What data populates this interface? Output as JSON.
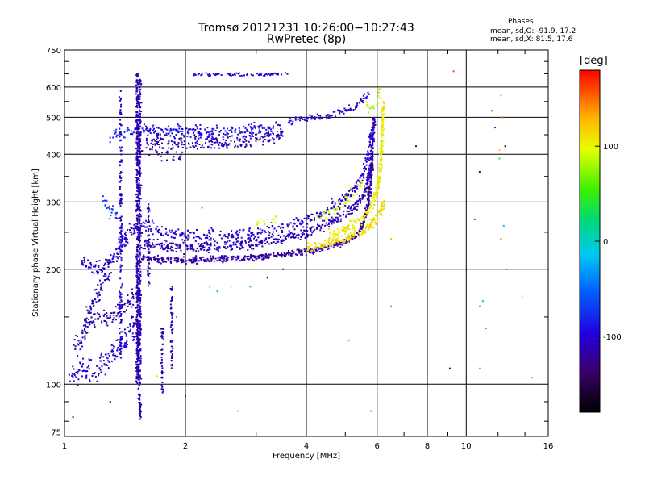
{
  "chart_data": {
    "type": "scatter",
    "title": "Tromsø 20121231 10:26:00−10:27:43",
    "subtitle": "RwPretec (8p)",
    "xlabel": "Frequency [MHz]",
    "ylabel": "Stationary phase Virtual Height [km]",
    "xscale": "log",
    "yscale": "log",
    "xlim": [
      1,
      16
    ],
    "ylim": [
      73,
      750
    ],
    "xticks": [
      1,
      2,
      4,
      6,
      8,
      10,
      16
    ],
    "xtick_labels": [
      "1",
      "2",
      "4",
      "6",
      "8",
      "10",
      "16"
    ],
    "yticks": [
      75,
      100,
      200,
      300,
      400,
      500,
      600,
      750
    ],
    "ytick_labels": [
      "75",
      "100",
      "200",
      "300",
      "400",
      "500",
      "600",
      "750"
    ],
    "grid": true,
    "colorbar": {
      "label": "[deg]",
      "range": [
        -180,
        180
      ],
      "ticks": [
        100,
        0,
        -100
      ],
      "tick_labels": [
        "100",
        "0",
        "-100"
      ]
    },
    "phases_stats": {
      "title": "Phases",
      "o": "mean, sd,O: -91.9, 17.2",
      "x": "mean, sd,X:  81.5, 17.6"
    },
    "series": [
      {
        "kind": "band",
        "points": [
          [
            1.03,
            105
          ],
          [
            1.06,
            106
          ],
          [
            1.1,
            108
          ],
          [
            1.15,
            110
          ],
          [
            1.2,
            112
          ],
          [
            1.25,
            115
          ],
          [
            1.3,
            118
          ],
          [
            1.35,
            122
          ],
          [
            1.4,
            128
          ],
          [
            1.45,
            135
          ],
          [
            1.5,
            145
          ]
        ],
        "thick": 0.05,
        "phase": -100,
        "density": 1.4
      },
      {
        "kind": "band",
        "points": [
          [
            1.1,
            210
          ],
          [
            1.15,
            205
          ],
          [
            1.2,
            202
          ],
          [
            1.25,
            204
          ],
          [
            1.3,
            210
          ],
          [
            1.35,
            220
          ],
          [
            1.4,
            235
          ],
          [
            1.45,
            250
          ],
          [
            1.5,
            260
          ]
        ],
        "thick": 0.03,
        "phase": -105,
        "density": 1.4
      },
      {
        "kind": "band",
        "points": [
          [
            1.15,
            145
          ],
          [
            1.2,
            146
          ],
          [
            1.25,
            148
          ],
          [
            1.3,
            150
          ],
          [
            1.35,
            155
          ],
          [
            1.4,
            160
          ],
          [
            1.45,
            165
          ],
          [
            1.5,
            170
          ]
        ],
        "thick": 0.035,
        "phase": -115,
        "density": 1.2
      },
      {
        "kind": "band",
        "points": [
          [
            1.05,
            125
          ],
          [
            1.1,
            130
          ],
          [
            1.15,
            150
          ],
          [
            1.2,
            170
          ],
          [
            1.25,
            185
          ],
          [
            1.3,
            195
          ]
        ],
        "thick": 0.05,
        "phase": -110,
        "density": 1.0
      },
      {
        "kind": "band",
        "points": [
          [
            1.25,
            300
          ],
          [
            1.28,
            290
          ],
          [
            1.32,
            280
          ],
          [
            1.36,
            270
          ]
        ],
        "thick": 0.03,
        "phase": -70,
        "density": 0.8
      },
      {
        "kind": "band",
        "points": [
          [
            1.3,
            440
          ],
          [
            1.35,
            450
          ],
          [
            1.4,
            455
          ],
          [
            1.45,
            460
          ],
          [
            1.52,
            460
          ]
        ],
        "thick": 0.02,
        "phase": -80,
        "density": 0.8
      },
      {
        "kind": "vline",
        "x": 1.52,
        "y0": 100,
        "y1": 650,
        "phase": -115,
        "density": 1.2
      },
      {
        "kind": "vline",
        "x": 1.54,
        "y0": 80,
        "y1": 640,
        "phase": -110,
        "density": 0.9
      },
      {
        "kind": "vline",
        "x": 1.38,
        "y0": 120,
        "y1": 590,
        "phase": -105,
        "density": 0.5
      },
      {
        "kind": "vline",
        "x": 1.62,
        "y0": 180,
        "y1": 300,
        "phase": -115,
        "density": 0.6
      },
      {
        "kind": "vline",
        "x": 1.75,
        "y0": 95,
        "y1": 140,
        "phase": -115,
        "density": 0.5
      },
      {
        "kind": "vline",
        "x": 1.85,
        "y0": 110,
        "y1": 180,
        "phase": -110,
        "density": 0.5
      },
      {
        "kind": "band",
        "points": [
          [
            1.55,
            215
          ],
          [
            1.7,
            212
          ],
          [
            2.0,
            211
          ],
          [
            2.5,
            213
          ],
          [
            3.0,
            215
          ],
          [
            3.5,
            218
          ],
          [
            4.0,
            222
          ],
          [
            4.5,
            228
          ],
          [
            5.0,
            236
          ],
          [
            5.3,
            245
          ],
          [
            5.5,
            258
          ],
          [
            5.6,
            275
          ],
          [
            5.7,
            300
          ],
          [
            5.78,
            340
          ],
          [
            5.83,
            380
          ]
        ],
        "thick": 0.012,
        "phase": -118,
        "density": 1.5
      },
      {
        "kind": "band",
        "points": [
          [
            1.55,
            235
          ],
          [
            1.8,
            230
          ],
          [
            2.0,
            228
          ],
          [
            2.5,
            230
          ],
          [
            3.0,
            233
          ],
          [
            3.5,
            240
          ],
          [
            4.0,
            250
          ],
          [
            4.5,
            262
          ],
          [
            5.0,
            278
          ],
          [
            5.3,
            292
          ],
          [
            5.5,
            308
          ],
          [
            5.65,
            330
          ],
          [
            5.75,
            360
          ],
          [
            5.82,
            400
          ],
          [
            5.87,
            450
          ],
          [
            5.9,
            500
          ]
        ],
        "thick": 0.02,
        "phase": -112,
        "density": 1.4
      },
      {
        "kind": "band",
        "points": [
          [
            1.55,
            260
          ],
          [
            1.8,
            250
          ],
          [
            2.0,
            245
          ],
          [
            2.5,
            243
          ],
          [
            3.0,
            248
          ],
          [
            3.5,
            258
          ],
          [
            4.0,
            270
          ],
          [
            4.5,
            285
          ],
          [
            5.0,
            305
          ],
          [
            5.3,
            325
          ],
          [
            5.5,
            350
          ],
          [
            5.65,
            385
          ],
          [
            5.75,
            420
          ],
          [
            5.83,
            470
          ]
        ],
        "thick": 0.025,
        "phase": -100,
        "density": 1.0
      },
      {
        "kind": "band",
        "points": [
          [
            3.6,
            488
          ],
          [
            4.0,
            495
          ],
          [
            4.5,
            505
          ],
          [
            5.0,
            520
          ],
          [
            5.3,
            535
          ],
          [
            5.5,
            555
          ],
          [
            5.7,
            580
          ]
        ],
        "thick": 0.015,
        "phase": -105,
        "density": 0.9
      },
      {
        "kind": "band",
        "points": [
          [
            1.55,
            462
          ],
          [
            2.0,
            458
          ],
          [
            2.5,
            455
          ],
          [
            2.8,
            458
          ],
          [
            3.0,
            462
          ],
          [
            3.2,
            460
          ],
          [
            3.5,
            458
          ]
        ],
        "thick": 0.03,
        "phase": -92,
        "density": 1.4
      },
      {
        "kind": "band",
        "points": [
          [
            1.55,
            430
          ],
          [
            2.0,
            428
          ],
          [
            2.5,
            425
          ],
          [
            2.8,
            430
          ],
          [
            3.0,
            440
          ],
          [
            3.2,
            442
          ],
          [
            3.5,
            445
          ]
        ],
        "thick": 0.025,
        "phase": -115,
        "density": 1.0
      },
      {
        "kind": "band",
        "points": [
          [
            1.6,
            405
          ],
          [
            1.8,
            400
          ],
          [
            2.0,
            398
          ]
        ],
        "thick": 0.03,
        "phase": -110,
        "density": 0.6
      },
      {
        "kind": "band",
        "points": [
          [
            2.1,
            648
          ],
          [
            2.3,
            647
          ],
          [
            2.6,
            646
          ],
          [
            2.8,
            645
          ],
          [
            3.2,
            648
          ],
          [
            3.6,
            650
          ]
        ],
        "thick": 0.006,
        "phase": -100,
        "density": 0.6
      },
      {
        "kind": "band",
        "points": [
          [
            3.0,
            263
          ],
          [
            3.2,
            265
          ],
          [
            3.4,
            270
          ]
        ],
        "thick": 0.02,
        "phase": 100,
        "density": 0.6
      },
      {
        "kind": "band",
        "points": [
          [
            4.0,
            228
          ],
          [
            4.5,
            233
          ],
          [
            5.0,
            240
          ],
          [
            5.5,
            250
          ],
          [
            5.8,
            262
          ],
          [
            6.1,
            280
          ],
          [
            6.25,
            300
          ]
        ],
        "thick": 0.015,
        "phase": 115,
        "density": 1.3
      },
      {
        "kind": "band",
        "points": [
          [
            4.5,
            245
          ],
          [
            5.0,
            255
          ],
          [
            5.5,
            270
          ],
          [
            5.8,
            290
          ],
          [
            6.0,
            320
          ],
          [
            6.1,
            360
          ],
          [
            6.15,
            420
          ],
          [
            6.2,
            480
          ],
          [
            6.22,
            550
          ]
        ],
        "thick": 0.02,
        "phase": 105,
        "density": 1.2
      },
      {
        "kind": "band",
        "points": [
          [
            4.2,
            270
          ],
          [
            4.5,
            280
          ],
          [
            5.0,
            300
          ],
          [
            5.3,
            320
          ],
          [
            5.5,
            340
          ]
        ],
        "thick": 0.02,
        "phase": 98,
        "density": 0.5
      },
      {
        "kind": "band",
        "points": [
          [
            5.6,
            550
          ],
          [
            5.8,
            520
          ],
          [
            6.0,
            540
          ],
          [
            6.1,
            600
          ]
        ],
        "thick": 0.02,
        "phase": 80,
        "density": 0.4
      }
    ],
    "scatter": [
      [
        9.3,
        660,
        160
      ],
      [
        11.6,
        520,
        -60
      ],
      [
        11.8,
        470,
        -80
      ],
      [
        12.2,
        570,
        140
      ],
      [
        12.3,
        500,
        150
      ],
      [
        12.5,
        420,
        -130
      ],
      [
        12.1,
        410,
        120
      ],
      [
        10.8,
        360,
        -110
      ],
      [
        12.4,
        260,
        -20
      ],
      [
        12.2,
        240,
        150
      ],
      [
        10.5,
        270,
        170
      ],
      [
        12.6,
        200,
        160
      ],
      [
        10.8,
        160,
        -10
      ],
      [
        11.2,
        140,
        150
      ],
      [
        9.1,
        110,
        -120
      ],
      [
        10.8,
        110,
        140
      ],
      [
        14.6,
        104,
        140
      ],
      [
        11.0,
        165,
        -20
      ],
      [
        13.8,
        170,
        90
      ],
      [
        12.1,
        390,
        40
      ],
      [
        7.5,
        420,
        -110
      ],
      [
        6.5,
        160,
        150
      ],
      [
        6.0,
        210,
        130
      ],
      [
        6.5,
        240,
        70
      ],
      [
        5.8,
        85,
        150
      ],
      [
        5.1,
        130,
        130
      ],
      [
        2.7,
        85,
        130
      ],
      [
        2.9,
        180,
        -20
      ],
      [
        2.95,
        200,
        70
      ],
      [
        2.6,
        180,
        90
      ],
      [
        2.3,
        180,
        60
      ],
      [
        2.4,
        175,
        -20
      ],
      [
        2.2,
        290,
        -30
      ],
      [
        2.0,
        93,
        -110
      ],
      [
        1.05,
        82,
        -110
      ],
      [
        1.3,
        90,
        -110
      ],
      [
        1.25,
        118,
        -120
      ],
      [
        1.5,
        75,
        100
      ],
      [
        1.7,
        105,
        110
      ],
      [
        1.9,
        150,
        150
      ],
      [
        3.5,
        200,
        -110
      ],
      [
        3.2,
        190,
        -110
      ]
    ]
  }
}
